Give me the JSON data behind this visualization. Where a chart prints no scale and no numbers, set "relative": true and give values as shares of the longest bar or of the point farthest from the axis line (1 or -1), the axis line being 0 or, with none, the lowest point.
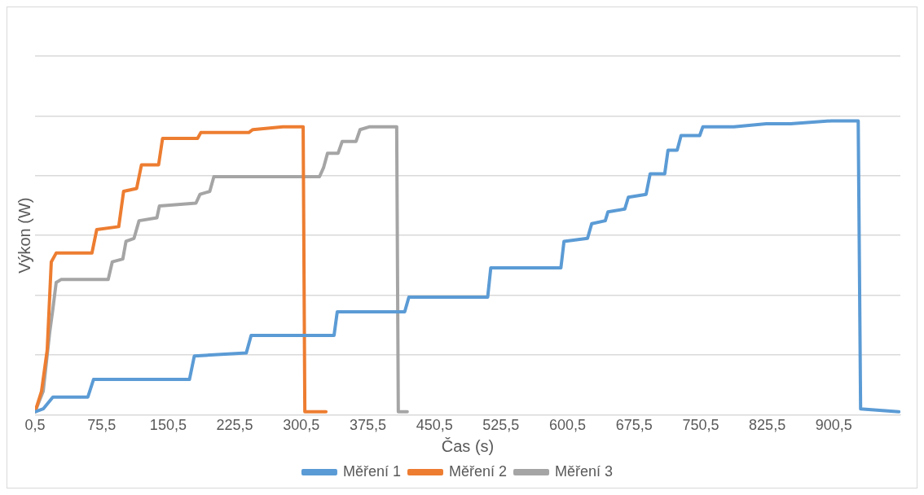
{
  "chart_data": {
    "type": "line",
    "xlabel": "Čas (s)",
    "ylabel": "Výkon (W)",
    "relative": true,
    "grid": "y",
    "legend": "bottom",
    "marker": "none",
    "line_style": "solid",
    "xlim": [
      0.5,
      975.5
    ],
    "xticks": [
      {
        "value": 0.5,
        "label": "0,5"
      },
      {
        "value": 75.5,
        "label": "75,5"
      },
      {
        "value": 150.5,
        "label": "150,5"
      },
      {
        "value": 225.5,
        "label": "225,5"
      },
      {
        "value": 300.5,
        "label": "300,5"
      },
      {
        "value": 375.5,
        "label": "375,5"
      },
      {
        "value": 450.5,
        "label": "450,5"
      },
      {
        "value": 525.5,
        "label": "525,5"
      },
      {
        "value": 600.5,
        "label": "600,5"
      },
      {
        "value": 675.5,
        "label": "675,5"
      },
      {
        "value": 750.5,
        "label": "750,5"
      },
      {
        "value": 825.5,
        "label": "825,5"
      },
      {
        "value": 900.5,
        "label": "900,5"
      }
    ],
    "series": [
      {
        "name": "Měření 1",
        "color": "#5b9bd5",
        "x": [
          0.5,
          9.7,
          20.6,
          60,
          66.4,
          174.5,
          180,
          238.5,
          244,
          337.4,
          341,
          417,
          421.7,
          510.5,
          514,
          593,
          596.5,
          623,
          627.7,
          643,
          646,
          665,
          669,
          689,
          693.6,
          710,
          713.7,
          724,
          728.4,
          749.4,
          753,
          788,
          824.5,
          852,
          898,
          928,
          930.7,
          973.8
        ],
        "values": [
          0.01,
          0.02,
          0.06,
          0.06,
          0.12,
          0.12,
          0.2,
          0.21,
          0.27,
          0.27,
          0.35,
          0.35,
          0.4,
          0.4,
          0.5,
          0.5,
          0.59,
          0.6,
          0.65,
          0.66,
          0.69,
          0.7,
          0.74,
          0.75,
          0.82,
          0.82,
          0.9,
          0.9,
          0.95,
          0.95,
          0.98,
          0.98,
          0.99,
          0.99,
          1.0,
          1.0,
          0.02,
          0.01
        ]
      },
      {
        "name": "Měření 2",
        "color": "#ed7d31",
        "x": [
          0.5,
          7.8,
          14.2,
          18.8,
          24.3,
          64.6,
          70,
          94.8,
          100.3,
          115,
          120.4,
          139.7,
          144.2,
          183.6,
          187.3,
          241.3,
          245.9,
          279.8,
          302.6,
          304.5,
          328.3
        ],
        "values": [
          0.01,
          0.08,
          0.22,
          0.52,
          0.55,
          0.55,
          0.63,
          0.64,
          0.76,
          0.77,
          0.85,
          0.85,
          0.94,
          0.94,
          0.96,
          0.96,
          0.97,
          0.98,
          0.98,
          0.01,
          0.01
        ]
      },
      {
        "name": "Měření 3",
        "color": "#a5a5a5",
        "x": [
          0.5,
          9.7,
          17,
          20.6,
          24.3,
          29.8,
          82.9,
          87.5,
          99.4,
          103,
          112,
          117.7,
          137.8,
          140.6,
          181.8,
          186.4,
          197.4,
          202,
          321,
          325.5,
          330.1,
          342,
          346.6,
          362.2,
          366.7,
          377.7,
          408,
          409.8,
          419.9
        ],
        "values": [
          0.01,
          0.08,
          0.28,
          0.36,
          0.45,
          0.46,
          0.46,
          0.52,
          0.53,
          0.59,
          0.6,
          0.66,
          0.67,
          0.71,
          0.72,
          0.75,
          0.76,
          0.81,
          0.81,
          0.84,
          0.89,
          0.89,
          0.93,
          0.93,
          0.97,
          0.98,
          0.98,
          0.01,
          0.01
        ]
      }
    ]
  }
}
